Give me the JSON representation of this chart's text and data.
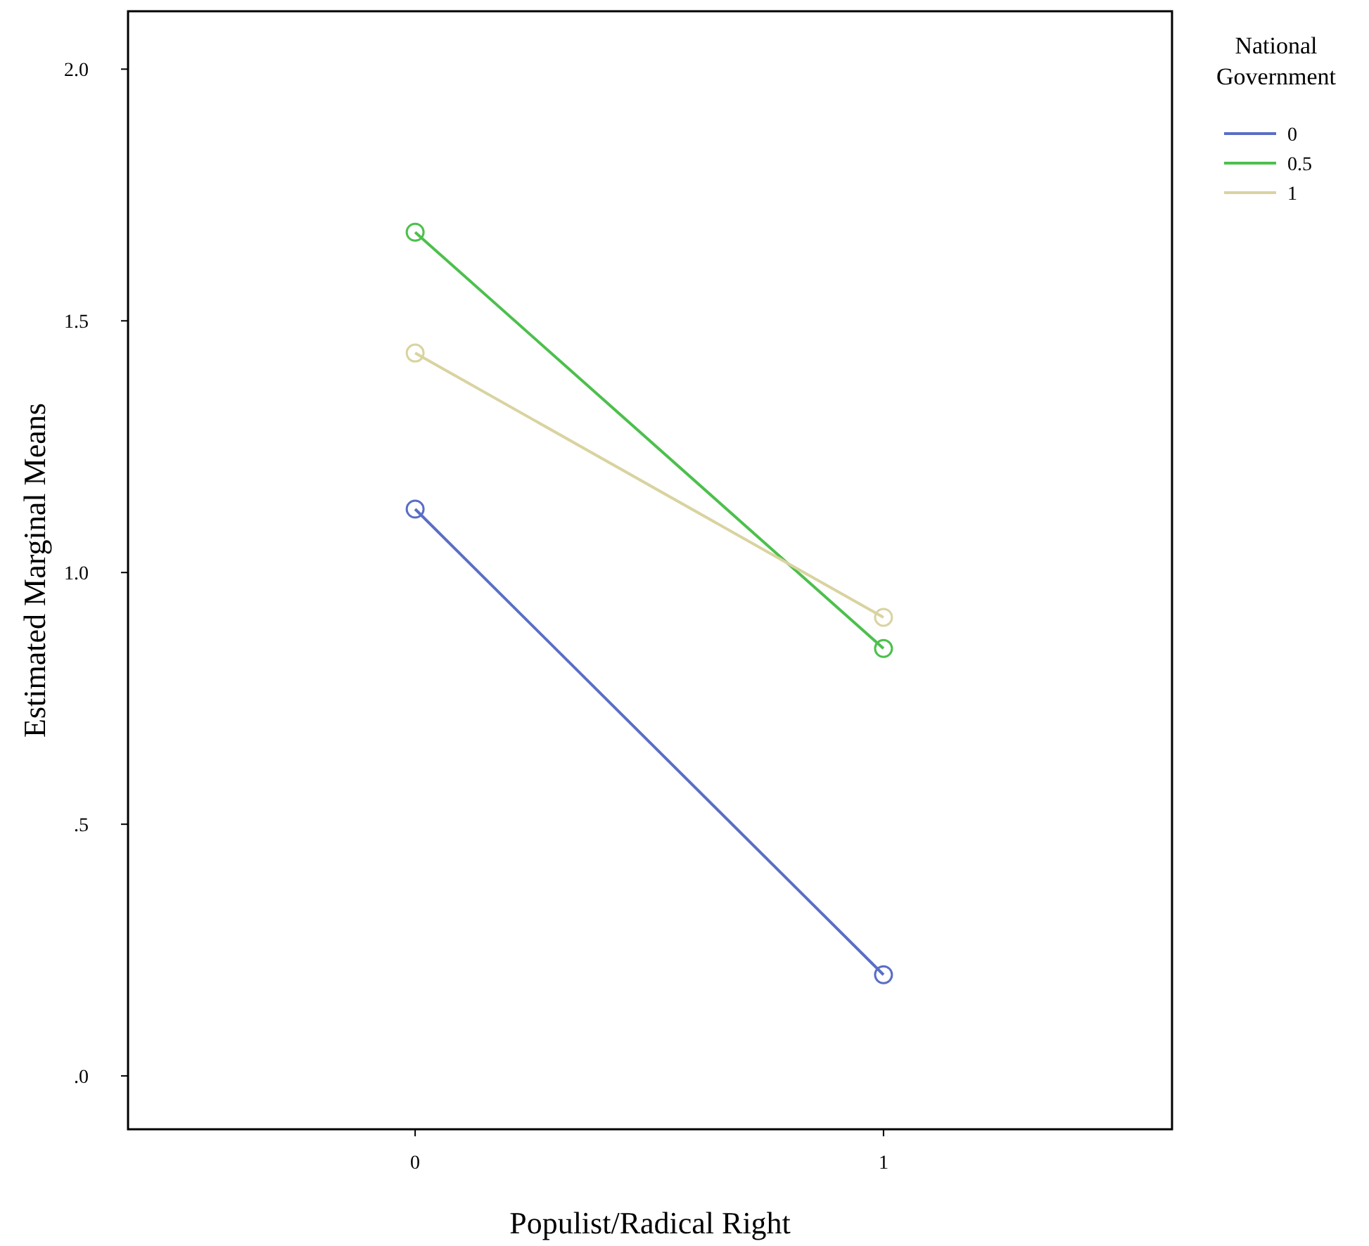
{
  "chart_data": {
    "type": "line",
    "xlabel": "Populist/Radical Right",
    "ylabel": "Estimated Marginal Means",
    "legend_title": "National Government",
    "x": [
      0,
      1
    ],
    "xlim": [
      -0.613,
      1.616
    ],
    "xticks": [
      0,
      1
    ],
    "ylim": [
      -0.106,
      2.115
    ],
    "yticks": [
      {
        "value": 0,
        "label": ".0"
      },
      {
        "value": 0.5,
        "label": ".5"
      },
      {
        "value": 1,
        "label": "1.0"
      },
      {
        "value": 1.5,
        "label": "1.5"
      },
      {
        "value": 2,
        "label": "2.0"
      }
    ],
    "grid": false,
    "legend": "right",
    "marker": "circle",
    "line_style": "solid",
    "series": [
      {
        "name": "0",
        "color": "#5a6ec6",
        "values": [
          1.126,
          0.201
        ]
      },
      {
        "name": "0.5",
        "color": "#4cc04c",
        "values": [
          1.676,
          0.849
        ]
      },
      {
        "name": "1",
        "color": "#d9d3a0",
        "values": [
          1.436,
          0.911
        ]
      }
    ]
  }
}
